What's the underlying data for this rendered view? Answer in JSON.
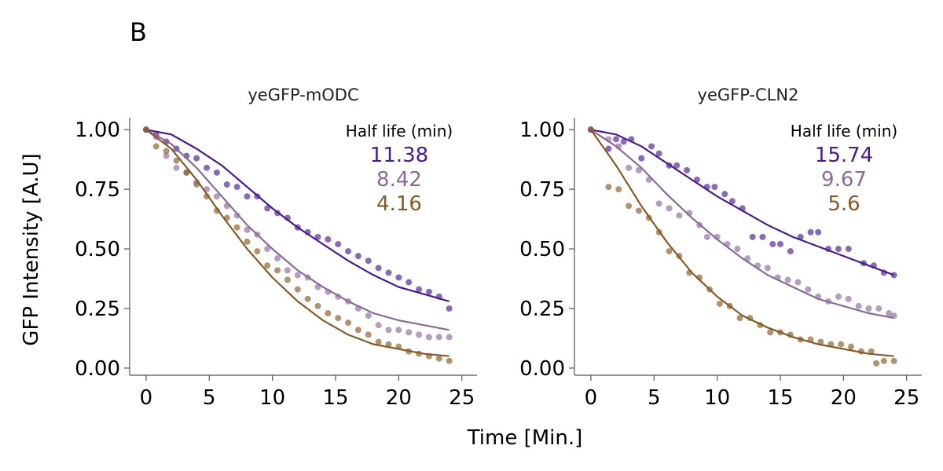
{
  "panel_label": "B",
  "ylabel": "GFP Intensity [A.U]",
  "xlabel": "Time [Min.]",
  "colors": {
    "dark_purple": "#4a1a8c",
    "light_purple": "#8a6a9a",
    "brown": "#855a27"
  },
  "chart_data": [
    {
      "type": "scatter",
      "title": "yeGFP-mODC",
      "annotation_title": "Half life (min)",
      "xlim": [
        -1.3,
        26.2
      ],
      "ylim": [
        -0.03,
        1.05
      ],
      "xticks": [
        "0",
        "5",
        "10",
        "15",
        "20",
        "25"
      ],
      "yticks": [
        "0.00",
        "0.25",
        "0.50",
        "0.75",
        "1.00"
      ],
      "series": [
        {
          "half_life": "11.38",
          "color": "#4a1a8c",
          "fit_x": [
            0,
            2,
            4,
            6,
            8,
            10,
            12,
            14,
            16,
            18,
            20,
            22,
            24
          ],
          "fit_y": [
            1.0,
            0.98,
            0.92,
            0.85,
            0.76,
            0.67,
            0.59,
            0.52,
            0.45,
            0.39,
            0.34,
            0.31,
            0.28
          ],
          "points": [
            [
              0,
              1.0
            ],
            [
              0.8,
              0.98
            ],
            [
              1.6,
              0.95
            ],
            [
              2.4,
              0.92
            ],
            [
              3.2,
              0.89
            ],
            [
              4.0,
              0.88
            ],
            [
              4.8,
              0.84
            ],
            [
              5.6,
              0.82
            ],
            [
              6.4,
              0.77
            ],
            [
              7.2,
              0.76
            ],
            [
              8.0,
              0.72
            ],
            [
              8.8,
              0.72
            ],
            [
              9.6,
              0.67
            ],
            [
              10.4,
              0.65
            ],
            [
              11.2,
              0.63
            ],
            [
              12.0,
              0.59
            ],
            [
              12.8,
              0.57
            ],
            [
              13.6,
              0.55
            ],
            [
              14.4,
              0.54
            ],
            [
              15.2,
              0.52
            ],
            [
              16.0,
              0.49
            ],
            [
              16.8,
              0.47
            ],
            [
              17.6,
              0.45
            ],
            [
              18.4,
              0.42
            ],
            [
              19.2,
              0.4
            ],
            [
              20.0,
              0.38
            ],
            [
              20.8,
              0.36
            ],
            [
              21.6,
              0.33
            ],
            [
              22.4,
              0.32
            ],
            [
              23.2,
              0.3
            ],
            [
              24.0,
              0.25
            ]
          ]
        },
        {
          "half_life": "8.42",
          "color": "#8a6a9a",
          "fit_x": [
            0,
            2,
            4,
            6,
            8,
            10,
            12,
            14,
            16,
            18,
            20,
            22,
            24
          ],
          "fit_y": [
            1.0,
            0.94,
            0.84,
            0.72,
            0.6,
            0.5,
            0.41,
            0.34,
            0.28,
            0.23,
            0.2,
            0.18,
            0.16
          ],
          "points": [
            [
              0,
              1.0
            ],
            [
              0.8,
              0.97
            ],
            [
              1.6,
              0.89
            ],
            [
              2.4,
              0.84
            ],
            [
              3.2,
              0.82
            ],
            [
              4.0,
              0.78
            ],
            [
              4.8,
              0.75
            ],
            [
              5.6,
              0.72
            ],
            [
              6.4,
              0.68
            ],
            [
              7.2,
              0.64
            ],
            [
              8.0,
              0.58
            ],
            [
              8.8,
              0.56
            ],
            [
              9.6,
              0.5
            ],
            [
              10.4,
              0.46
            ],
            [
              11.2,
              0.41
            ],
            [
              12.0,
              0.39
            ],
            [
              12.8,
              0.38
            ],
            [
              13.6,
              0.34
            ],
            [
              14.4,
              0.32
            ],
            [
              15.2,
              0.3
            ],
            [
              16.0,
              0.28
            ],
            [
              16.8,
              0.25
            ],
            [
              17.6,
              0.22
            ],
            [
              18.4,
              0.18
            ],
            [
              19.2,
              0.16
            ],
            [
              20.0,
              0.16
            ],
            [
              20.8,
              0.15
            ],
            [
              21.6,
              0.14
            ],
            [
              22.4,
              0.13
            ],
            [
              23.2,
              0.13
            ],
            [
              24.0,
              0.13
            ]
          ]
        },
        {
          "half_life": "4.16",
          "color": "#855a27",
          "fit_x": [
            0,
            2,
            4,
            6,
            8,
            10,
            12,
            14,
            16,
            18,
            20,
            22,
            24
          ],
          "fit_y": [
            1.0,
            0.92,
            0.79,
            0.64,
            0.5,
            0.38,
            0.28,
            0.2,
            0.14,
            0.1,
            0.08,
            0.06,
            0.05
          ],
          "points": [
            [
              0,
              1.0
            ],
            [
              0.8,
              0.93
            ],
            [
              1.6,
              0.91
            ],
            [
              2.4,
              0.87
            ],
            [
              3.2,
              0.82
            ],
            [
              4.0,
              0.77
            ],
            [
              4.8,
              0.72
            ],
            [
              5.6,
              0.66
            ],
            [
              6.4,
              0.63
            ],
            [
              7.2,
              0.59
            ],
            [
              8.0,
              0.53
            ],
            [
              8.8,
              0.49
            ],
            [
              9.6,
              0.43
            ],
            [
              10.4,
              0.41
            ],
            [
              11.2,
              0.37
            ],
            [
              12.0,
              0.33
            ],
            [
              12.8,
              0.29
            ],
            [
              13.6,
              0.26
            ],
            [
              14.4,
              0.23
            ],
            [
              15.2,
              0.21
            ],
            [
              16.0,
              0.19
            ],
            [
              16.8,
              0.16
            ],
            [
              17.6,
              0.14
            ],
            [
              18.4,
              0.11
            ],
            [
              19.2,
              0.1
            ],
            [
              20.0,
              0.09
            ],
            [
              20.8,
              0.07
            ],
            [
              21.6,
              0.06
            ],
            [
              22.4,
              0.05
            ],
            [
              23.2,
              0.04
            ],
            [
              24.0,
              0.03
            ]
          ]
        }
      ]
    },
    {
      "type": "scatter",
      "title": "yeGFP-CLN2",
      "annotation_title": "Half life (min)",
      "xlim": [
        -1.3,
        26.2
      ],
      "ylim": [
        -0.03,
        1.05
      ],
      "xticks": [
        "0",
        "5",
        "10",
        "15",
        "20",
        "25"
      ],
      "yticks": [
        "0.00",
        "0.25",
        "0.50",
        "0.75",
        "1.00"
      ],
      "series": [
        {
          "half_life": "15.74",
          "color": "#4a1a8c",
          "fit_x": [
            0,
            2,
            4,
            6,
            8,
            10,
            12,
            14,
            16,
            18,
            20,
            22,
            24
          ],
          "fit_y": [
            1.0,
            0.98,
            0.93,
            0.86,
            0.79,
            0.72,
            0.66,
            0.6,
            0.55,
            0.51,
            0.47,
            0.43,
            0.39
          ],
          "points": [
            [
              0,
              1.0
            ],
            [
              1.4,
              0.92
            ],
            [
              2.0,
              0.96
            ],
            [
              2.6,
              0.95
            ],
            [
              3.2,
              0.96
            ],
            [
              4.0,
              0.88
            ],
            [
              4.8,
              0.93
            ],
            [
              5.4,
              0.9
            ],
            [
              6.2,
              0.85
            ],
            [
              6.8,
              0.85
            ],
            [
              7.6,
              0.83
            ],
            [
              8.4,
              0.79
            ],
            [
              9.2,
              0.76
            ],
            [
              9.8,
              0.76
            ],
            [
              10.6,
              0.73
            ],
            [
              11.2,
              0.7
            ],
            [
              12.0,
              0.67
            ],
            [
              12.8,
              0.55
            ],
            [
              13.6,
              0.55
            ],
            [
              14.4,
              0.52
            ],
            [
              15.0,
              0.52
            ],
            [
              15.8,
              0.49
            ],
            [
              16.6,
              0.55
            ],
            [
              17.4,
              0.57
            ],
            [
              18.0,
              0.57
            ],
            [
              18.8,
              0.5
            ],
            [
              19.6,
              0.5
            ],
            [
              20.4,
              0.5
            ],
            [
              21.6,
              0.44
            ],
            [
              22.4,
              0.43
            ],
            [
              23.2,
              0.4
            ],
            [
              24.0,
              0.39
            ]
          ]
        },
        {
          "half_life": "9.67",
          "color": "#8a6a9a",
          "fit_x": [
            0,
            2,
            4,
            6,
            8,
            10,
            12,
            14,
            16,
            18,
            20,
            22,
            24
          ],
          "fit_y": [
            1.0,
            0.93,
            0.84,
            0.73,
            0.63,
            0.54,
            0.46,
            0.39,
            0.34,
            0.29,
            0.26,
            0.23,
            0.21
          ],
          "points": [
            [
              0,
              1.0
            ],
            [
              1.4,
              0.96
            ],
            [
              2.2,
              0.93
            ],
            [
              3.0,
              0.84
            ],
            [
              3.8,
              0.83
            ],
            [
              4.6,
              0.79
            ],
            [
              5.4,
              0.69
            ],
            [
              6.2,
              0.67
            ],
            [
              7.0,
              0.64
            ],
            [
              7.8,
              0.65
            ],
            [
              8.6,
              0.6
            ],
            [
              9.2,
              0.55
            ],
            [
              10.0,
              0.55
            ],
            [
              10.8,
              0.52
            ],
            [
              11.6,
              0.5
            ],
            [
              12.4,
              0.46
            ],
            [
              13.2,
              0.43
            ],
            [
              14.0,
              0.42
            ],
            [
              14.8,
              0.38
            ],
            [
              15.6,
              0.37
            ],
            [
              16.4,
              0.36
            ],
            [
              17.2,
              0.33
            ],
            [
              18.0,
              0.3
            ],
            [
              18.8,
              0.28
            ],
            [
              19.6,
              0.3
            ],
            [
              20.4,
              0.29
            ],
            [
              21.2,
              0.26
            ],
            [
              22.0,
              0.25
            ],
            [
              22.8,
              0.25
            ],
            [
              23.6,
              0.23
            ],
            [
              24.0,
              0.22
            ]
          ]
        },
        {
          "half_life": "5.6",
          "color": "#855a27",
          "fit_x": [
            0,
            2,
            4,
            6,
            8,
            10,
            12,
            14,
            16,
            18,
            20,
            22,
            24
          ],
          "fit_y": [
            1.0,
            0.85,
            0.68,
            0.53,
            0.4,
            0.3,
            0.22,
            0.17,
            0.13,
            0.1,
            0.08,
            0.06,
            0.05
          ],
          "points": [
            [
              0,
              1.0
            ],
            [
              1.4,
              0.76
            ],
            [
              2.2,
              0.75
            ],
            [
              3.0,
              0.68
            ],
            [
              3.8,
              0.66
            ],
            [
              4.6,
              0.63
            ],
            [
              5.4,
              0.57
            ],
            [
              6.2,
              0.49
            ],
            [
              7.0,
              0.47
            ],
            [
              7.8,
              0.4
            ],
            [
              8.6,
              0.38
            ],
            [
              9.4,
              0.33
            ],
            [
              10.2,
              0.27
            ],
            [
              11.0,
              0.26
            ],
            [
              11.8,
              0.21
            ],
            [
              12.6,
              0.21
            ],
            [
              13.4,
              0.18
            ],
            [
              14.2,
              0.15
            ],
            [
              15.0,
              0.15
            ],
            [
              15.8,
              0.14
            ],
            [
              16.6,
              0.12
            ],
            [
              17.4,
              0.12
            ],
            [
              18.2,
              0.11
            ],
            [
              19.0,
              0.1
            ],
            [
              19.8,
              0.1
            ],
            [
              20.6,
              0.09
            ],
            [
              21.4,
              0.07
            ],
            [
              22.2,
              0.07
            ],
            [
              22.6,
              0.02
            ],
            [
              23.2,
              0.03
            ],
            [
              24.0,
              0.03
            ]
          ]
        }
      ]
    }
  ]
}
